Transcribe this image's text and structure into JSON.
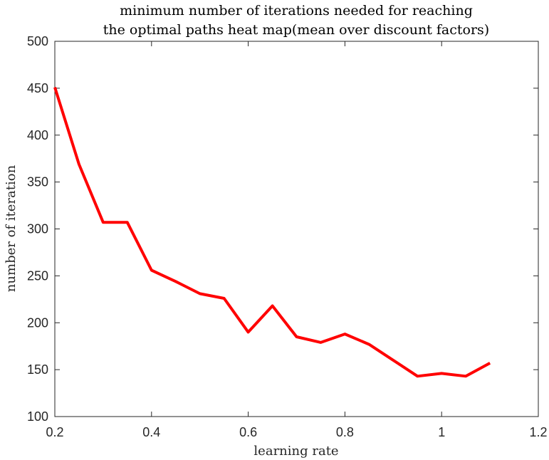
{
  "chart_data": {
    "type": "line",
    "title": [
      "minimum number of iterations needed for reaching",
      "the optimal paths heat map(mean over discount factors)"
    ],
    "xlabel": "learning rate",
    "ylabel": "number of iteration",
    "xlim": [
      0.2,
      1.2
    ],
    "ylim": [
      100,
      500
    ],
    "xticks": [
      "0.2",
      "0.4",
      "0.6",
      "0.8",
      "1",
      "1.2"
    ],
    "yticks": [
      "100",
      "150",
      "200",
      "250",
      "300",
      "350",
      "400",
      "450",
      "500"
    ],
    "grid": false,
    "series": [
      {
        "color": "#ff0000",
        "x": [
          0.2,
          0.25,
          0.3,
          0.35,
          0.4,
          0.45,
          0.5,
          0.55,
          0.6,
          0.65,
          0.7,
          0.75,
          0.8,
          0.85,
          0.9,
          0.95,
          1.0,
          1.05,
          1.1
        ],
        "y": [
          451,
          369,
          307,
          307,
          256,
          244,
          231,
          226,
          190,
          218,
          185,
          179,
          188,
          177,
          160,
          143,
          146,
          143,
          157
        ]
      }
    ]
  }
}
